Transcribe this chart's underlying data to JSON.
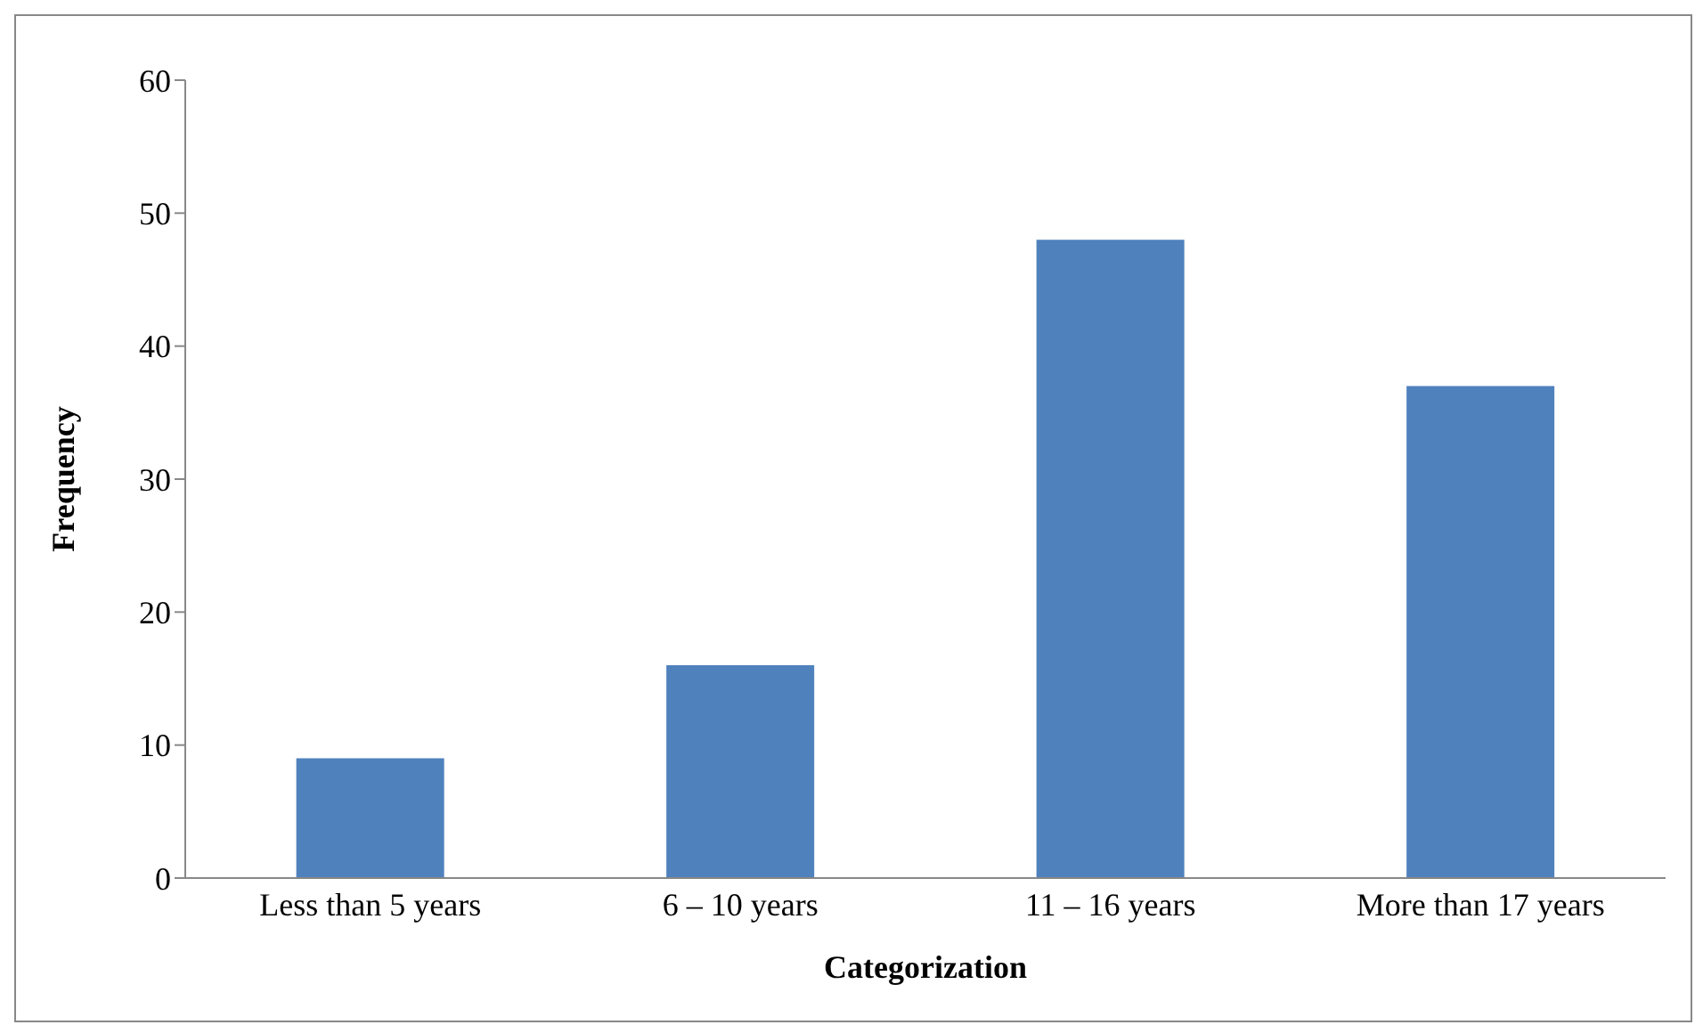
{
  "chart_data": {
    "type": "bar",
    "xlabel": "Categorization",
    "ylabel": "Frequency",
    "categories": [
      "Less than 5 years",
      "6 – 10 years",
      "11 – 16 years",
      "More than 17 years"
    ],
    "values": [
      9,
      16,
      48,
      37
    ],
    "color": "#4f81bd",
    "ylim": [
      0,
      60
    ],
    "yticks": [
      0,
      10,
      20,
      30,
      40,
      50,
      60
    ],
    "grid": false,
    "legend": false
  }
}
